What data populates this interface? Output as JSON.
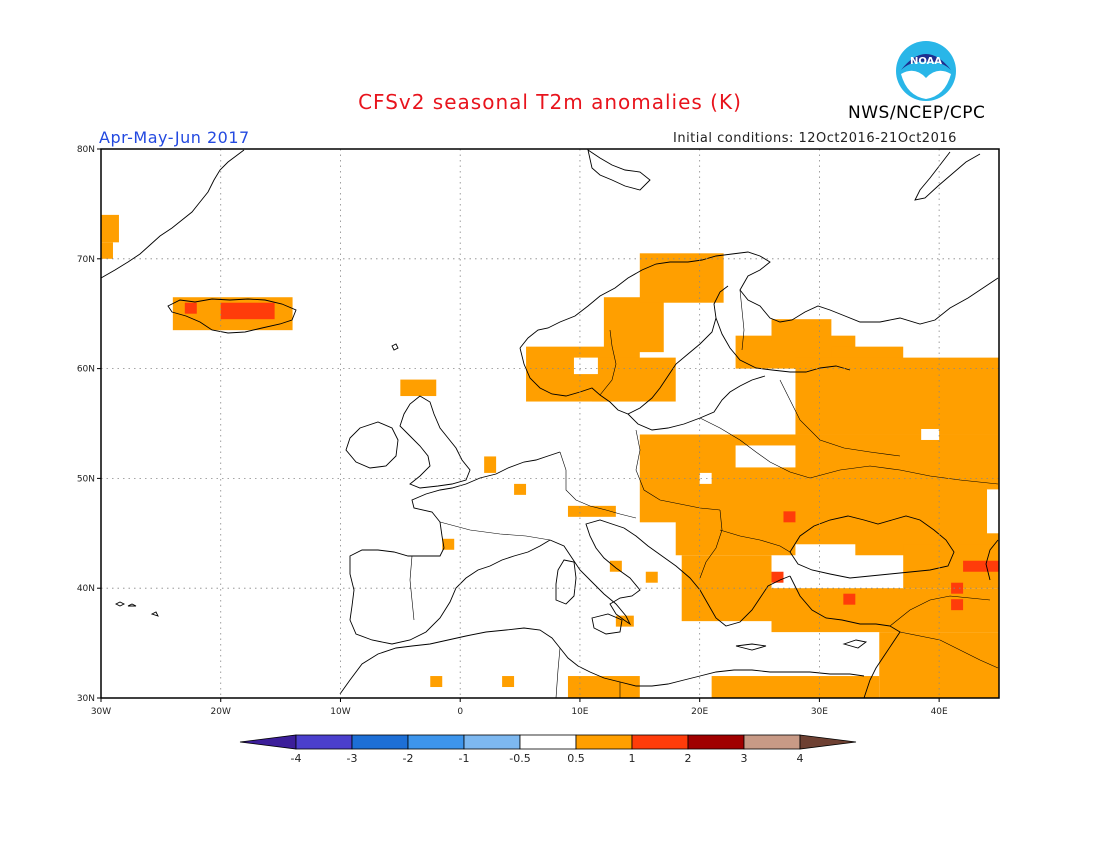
{
  "header": {
    "title": "CFSv2 seasonal T2m anomalies (K)",
    "agency": "NWS/NCEP/CPC",
    "season": "Apr-May-Jun 2017",
    "initial_conditions": "Initial conditions: 12Oct2016-21Oct2016",
    "logo_text": "NOAA"
  },
  "map": {
    "lon_range": [
      -30,
      45
    ],
    "lat_range": [
      30,
      80
    ],
    "lon_ticks": [
      {
        "value": -30,
        "label": "30W"
      },
      {
        "value": -20,
        "label": "20W"
      },
      {
        "value": -10,
        "label": "10W"
      },
      {
        "value": 0,
        "label": "0"
      },
      {
        "value": 10,
        "label": "10E"
      },
      {
        "value": 20,
        "label": "20E"
      },
      {
        "value": 30,
        "label": "30E"
      },
      {
        "value": 40,
        "label": "40E"
      }
    ],
    "lat_ticks": [
      {
        "value": 30,
        "label": "30N"
      },
      {
        "value": 40,
        "label": "40N"
      },
      {
        "value": 50,
        "label": "50N"
      },
      {
        "value": 60,
        "label": "60N"
      },
      {
        "value": 70,
        "label": "70N"
      },
      {
        "value": 80,
        "label": "80N"
      }
    ],
    "grid": true,
    "anomaly_regions": [
      {
        "category": "0.5 to 1",
        "lon": [
          -30,
          -28.5
        ],
        "lat": [
          71.5,
          74
        ]
      },
      {
        "category": "0.5 to 1",
        "lon": [
          -30,
          -29
        ],
        "lat": [
          70,
          71.5
        ]
      },
      {
        "category": "0.5 to 1",
        "lon": [
          -24,
          -14
        ],
        "lat": [
          63.5,
          66.5
        ]
      },
      {
        "category": "0.5 to 1",
        "lon": [
          5.5,
          15
        ],
        "lat": [
          57,
          62
        ]
      },
      {
        "category": "0.5 to 1",
        "lon": [
          12,
          17
        ],
        "lat": [
          61.5,
          66.5
        ]
      },
      {
        "category": "0.5 to 1",
        "lon": [
          15,
          22
        ],
        "lat": [
          66,
          70.5
        ]
      },
      {
        "category": "0.5 to 1",
        "lon": [
          11,
          18
        ],
        "lat": [
          57,
          61
        ]
      },
      {
        "category": "0.5 to 1",
        "lon": [
          -5,
          -2
        ],
        "lat": [
          57.5,
          59
        ]
      },
      {
        "category": "0.5 to 1",
        "lon": [
          2,
          3
        ],
        "lat": [
          50.5,
          52
        ]
      },
      {
        "category": "0.5 to 1",
        "lon": [
          4.5,
          5.5
        ],
        "lat": [
          48.5,
          49.5
        ]
      },
      {
        "category": "0.5 to 1",
        "lon": [
          9,
          13
        ],
        "lat": [
          46.5,
          47.5
        ]
      },
      {
        "category": "0.5 to 1",
        "lon": [
          -1.5,
          -0.5
        ],
        "lat": [
          43.5,
          44.5
        ]
      },
      {
        "category": "0.5 to 1",
        "lon": [
          23,
          33
        ],
        "lat": [
          60,
          63
        ]
      },
      {
        "category": "0.5 to 1",
        "lon": [
          26,
          31
        ],
        "lat": [
          62.5,
          64.5
        ]
      },
      {
        "category": "0.5 to 1",
        "lon": [
          31,
          37
        ],
        "lat": [
          60,
          62
        ]
      },
      {
        "category": "0.5 to 1",
        "lon": [
          28,
          45
        ],
        "lat": [
          54,
          61
        ]
      },
      {
        "category": "0.5 to 1",
        "lon": [
          15,
          45
        ],
        "lat": [
          46,
          54
        ]
      },
      {
        "category": "0.5 to 1",
        "lon": [
          18,
          45
        ],
        "lat": [
          43,
          47
        ]
      },
      {
        "category": "0.5 to 1",
        "lon": [
          18.5,
          26
        ],
        "lat": [
          37,
          43
        ]
      },
      {
        "category": "0.5 to 1",
        "lon": [
          26,
          45
        ],
        "lat": [
          36,
          40
        ]
      },
      {
        "category": "0.5 to 1",
        "lon": [
          37,
          45
        ],
        "lat": [
          40,
          44
        ]
      },
      {
        "category": "0.5 to 1",
        "lon": [
          35,
          45
        ],
        "lat": [
          30,
          36
        ]
      },
      {
        "category": "0.5 to 1",
        "lon": [
          13,
          14.5
        ],
        "lat": [
          36.5,
          37.5
        ]
      },
      {
        "category": "0.5 to 1",
        "lon": [
          12.5,
          13.5
        ],
        "lat": [
          41.5,
          42.5
        ]
      },
      {
        "category": "0.5 to 1",
        "lon": [
          15.5,
          16.5
        ],
        "lat": [
          40.5,
          41.5
        ]
      },
      {
        "category": "0.5 to 1",
        "lon": [
          9,
          15
        ],
        "lat": [
          30,
          32
        ]
      },
      {
        "category": "0.5 to 1",
        "lon": [
          21,
          35
        ],
        "lat": [
          30,
          32
        ]
      },
      {
        "category": "0.5 to 1",
        "lon": [
          -2.5,
          -1.5
        ],
        "lat": [
          31,
          32
        ]
      },
      {
        "category": "0.5 to 1",
        "lon": [
          3.5,
          4.5
        ],
        "lat": [
          31,
          32
        ]
      },
      {
        "category": "1 to 2",
        "lon": [
          -20,
          -15.5
        ],
        "lat": [
          64.5,
          66
        ]
      },
      {
        "category": "1 to 2",
        "lon": [
          -23,
          -22
        ],
        "lat": [
          65,
          66
        ]
      },
      {
        "category": "1 to 2",
        "lon": [
          27,
          28
        ],
        "lat": [
          46,
          47
        ]
      },
      {
        "category": "1 to 2",
        "lon": [
          42,
          45
        ],
        "lat": [
          41.5,
          42.5
        ]
      },
      {
        "category": "1 to 2",
        "lon": [
          41,
          42
        ],
        "lat": [
          38,
          39
        ]
      },
      {
        "category": "1 to 2",
        "lon": [
          41,
          42
        ],
        "lat": [
          39.5,
          40.5
        ]
      },
      {
        "category": "1 to 2",
        "lon": [
          32,
          33
        ],
        "lat": [
          38.5,
          39.5
        ]
      },
      {
        "category": "1 to 2",
        "lon": [
          26,
          27
        ],
        "lat": [
          40.5,
          41.5
        ]
      }
    ],
    "near_normal_gaps": [
      {
        "lon": [
          28,
          33
        ],
        "lat": [
          41.5,
          44
        ]
      },
      {
        "lon": [
          23,
          28
        ],
        "lat": [
          51,
          53
        ]
      },
      {
        "lon": [
          24,
          25
        ],
        "lat": [
          54.5,
          55.5
        ]
      },
      {
        "lon": [
          20,
          21
        ],
        "lat": [
          49.5,
          50.5
        ]
      },
      {
        "lon": [
          38.5,
          40
        ],
        "lat": [
          53.5,
          54.5
        ]
      },
      {
        "lon": [
          44,
          45
        ],
        "lat": [
          45,
          49
        ]
      },
      {
        "lon": [
          9.5,
          11.5
        ],
        "lat": [
          59.5,
          61
        ]
      }
    ]
  },
  "colorbar": {
    "levels": [
      "-4",
      "-3",
      "-2",
      "-1",
      "-0.5",
      "0.5",
      "1",
      "2",
      "3",
      "4"
    ],
    "colors": [
      "#3c1e9a",
      "#4b3fcd",
      "#1d6fd6",
      "#3d95ec",
      "#7db8f0",
      "#ffffff",
      "#ff9f00",
      "#ff3c0a",
      "#a00000",
      "#c89a86",
      "#6e4032"
    ]
  }
}
